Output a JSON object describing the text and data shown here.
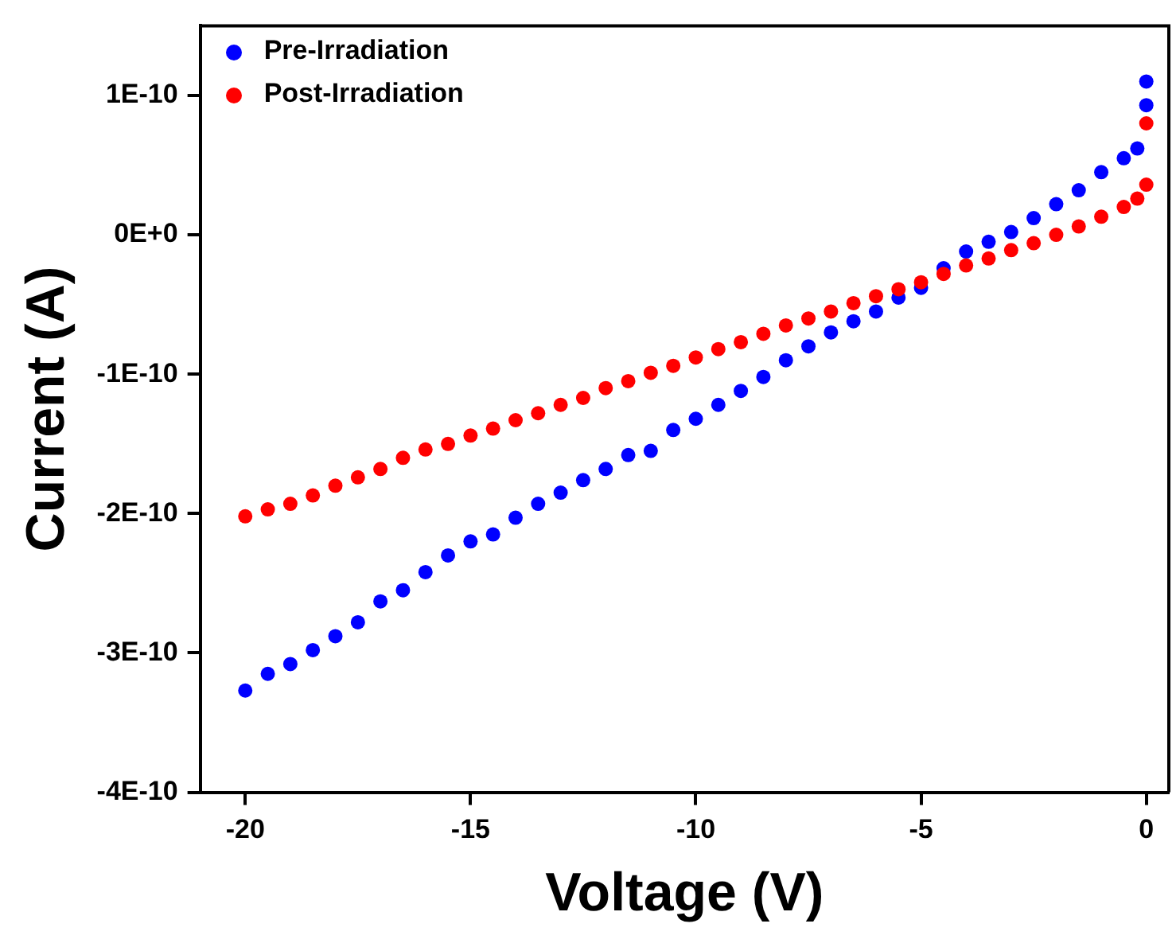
{
  "chart_data": {
    "type": "scatter",
    "xlabel": "Voltage (V)",
    "ylabel": "Current (A)",
    "xlim": [
      -21,
      0.5
    ],
    "xticks": [
      -20,
      -15,
      -10,
      -5,
      0
    ],
    "ylim": [
      -4e-10,
      1.5e-10
    ],
    "yticks": [
      {
        "value": -4e-10,
        "label": "-4E-10"
      },
      {
        "value": -3e-10,
        "label": "-3E-10"
      },
      {
        "value": -2e-10,
        "label": "-2E-10"
      },
      {
        "value": -1e-10,
        "label": "-1E-10"
      },
      {
        "value": 0,
        "label": "0E+0"
      },
      {
        "value": 1e-10,
        "label": "1E-10"
      }
    ],
    "grid": false,
    "legend": "top left",
    "marker": "circle",
    "x": [
      -20,
      -19.5,
      -19,
      -18.5,
      -18,
      -17.5,
      -17,
      -16.5,
      -16,
      -15.5,
      -15,
      -14.5,
      -14,
      -13.5,
      -13,
      -12.5,
      -12,
      -11.5,
      -11,
      -10.5,
      -10,
      -9.5,
      -9,
      -8.5,
      -8,
      -7.5,
      -7,
      -6.5,
      -6,
      -5.5,
      -5,
      -4.5,
      -4,
      -3.5,
      -3,
      -2.5,
      -2,
      -1.5,
      -1,
      -0.5,
      -0.2,
      0,
      0
    ],
    "series": [
      {
        "name": "Pre-Irradiation",
        "color": "#0000ff",
        "values": [
          -3.27e-10,
          -3.15e-10,
          -3.08e-10,
          -2.98e-10,
          -2.88e-10,
          -2.78e-10,
          -2.63e-10,
          -2.55e-10,
          -2.42e-10,
          -2.3e-10,
          -2.2e-10,
          -2.15e-10,
          -2.03e-10,
          -1.93e-10,
          -1.85e-10,
          -1.76e-10,
          -1.68e-10,
          -1.58e-10,
          -1.55e-10,
          -1.4e-10,
          -1.32e-10,
          -1.22e-10,
          -1.12e-10,
          -1.02e-10,
          -9e-11,
          -8e-11,
          -7e-11,
          -6.2e-11,
          -5.5e-11,
          -4.5e-11,
          -3.8e-11,
          -2.4e-11,
          -1.2e-11,
          -5e-12,
          2e-12,
          1.2e-11,
          2.2e-11,
          3.2e-11,
          4.5e-11,
          5.5e-11,
          6.2e-11,
          9.3e-11,
          1.1e-10
        ]
      },
      {
        "name": "Post-Irradiation",
        "color": "#ff0000",
        "values": [
          -2.02e-10,
          -1.97e-10,
          -1.93e-10,
          -1.87e-10,
          -1.8e-10,
          -1.74e-10,
          -1.68e-10,
          -1.6e-10,
          -1.54e-10,
          -1.5e-10,
          -1.44e-10,
          -1.39e-10,
          -1.33e-10,
          -1.28e-10,
          -1.22e-10,
          -1.17e-10,
          -1.1e-10,
          -1.05e-10,
          -9.9e-11,
          -9.4e-11,
          -8.8e-11,
          -8.2e-11,
          -7.7e-11,
          -7.1e-11,
          -6.5e-11,
          -6e-11,
          -5.5e-11,
          -4.9e-11,
          -4.4e-11,
          -3.9e-11,
          -3.4e-11,
          -2.8e-11,
          -2.2e-11,
          -1.7e-11,
          -1.1e-11,
          -6e-12,
          0,
          6e-12,
          1.3e-11,
          2e-11,
          2.6e-11,
          3.6e-11,
          8e-11
        ]
      }
    ]
  }
}
